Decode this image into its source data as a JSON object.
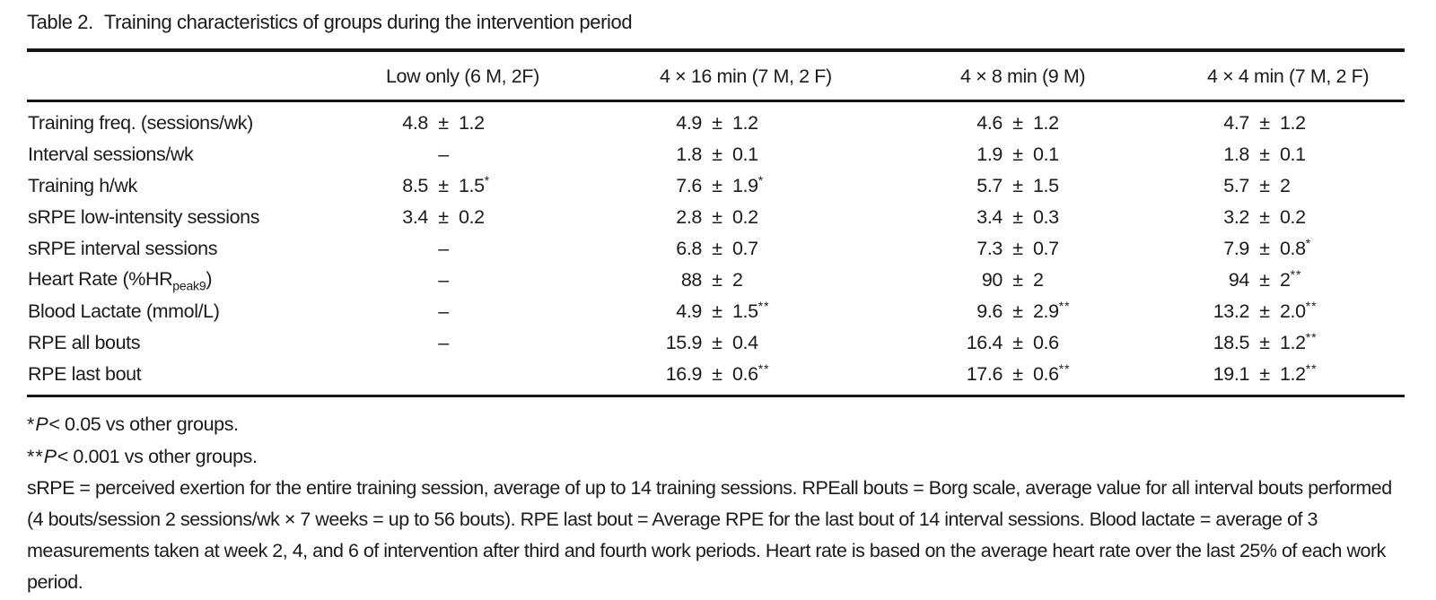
{
  "title": {
    "label": "Table 2.",
    "text": "Training characteristics of groups during the intervention period"
  },
  "symbols": {
    "pm": "±",
    "dash": "–"
  },
  "table": {
    "columns": [
      "",
      "Low only (6 M, 2F)",
      "4 × 16 min (7 M, 2 F)",
      "4 × 8 min (9 M)",
      "4 × 4 min (7 M, 2 F)"
    ],
    "rows": [
      {
        "label": "Training freq. (sessions/wk)",
        "cells": [
          {
            "mean": "4.8",
            "sd": "1.2",
            "sig": ""
          },
          {
            "mean": "4.9",
            "sd": "1.2",
            "sig": ""
          },
          {
            "mean": "4.6",
            "sd": "1.2",
            "sig": ""
          },
          {
            "mean": "4.7",
            "sd": "1.2",
            "sig": ""
          }
        ]
      },
      {
        "label": "Interval sessions/wk",
        "cells": [
          {
            "dash": true
          },
          {
            "mean": "1.8",
            "sd": "0.1",
            "sig": ""
          },
          {
            "mean": "1.9",
            "sd": "0.1",
            "sig": ""
          },
          {
            "mean": "1.8",
            "sd": "0.1",
            "sig": ""
          }
        ]
      },
      {
        "label": "Training h/wk",
        "cells": [
          {
            "mean": "8.5",
            "sd": "1.5",
            "sig": "*"
          },
          {
            "mean": "7.6",
            "sd": "1.9",
            "sig": "*"
          },
          {
            "mean": "5.7",
            "sd": "1.5",
            "sig": ""
          },
          {
            "mean": "5.7",
            "sd": "2",
            "sig": ""
          }
        ]
      },
      {
        "label": "sRPE low-intensity sessions",
        "cells": [
          {
            "mean": "3.4",
            "sd": "0.2",
            "sig": ""
          },
          {
            "mean": "2.8",
            "sd": "0.2",
            "sig": ""
          },
          {
            "mean": "3.4",
            "sd": "0.3",
            "sig": ""
          },
          {
            "mean": "3.2",
            "sd": "0.2",
            "sig": ""
          }
        ]
      },
      {
        "label": "sRPE interval sessions",
        "cells": [
          {
            "dash": true
          },
          {
            "mean": "6.8",
            "sd": "0.7",
            "sig": ""
          },
          {
            "mean": "7.3",
            "sd": "0.7",
            "sig": ""
          },
          {
            "mean": "7.9",
            "sd": "0.8",
            "sig": "*"
          }
        ]
      },
      {
        "label": "Heart Rate (%HR",
        "label_sub": "peak9",
        "label_end": ")",
        "cells": [
          {
            "dash": true
          },
          {
            "mean": "88",
            "sd": "2",
            "sig": ""
          },
          {
            "mean": "90",
            "sd": "2",
            "sig": ""
          },
          {
            "mean": "94",
            "sd": "2",
            "sig": "**"
          }
        ]
      },
      {
        "label": "Blood Lactate (mmol/L)",
        "cells": [
          {
            "dash": true
          },
          {
            "mean": "4.9",
            "sd": "1.5",
            "sig": "**"
          },
          {
            "mean": "9.6",
            "sd": "2.9",
            "sig": "**"
          },
          {
            "mean": "13.2",
            "sd": "2.0",
            "sig": "**"
          }
        ]
      },
      {
        "label": "RPE all bouts",
        "cells": [
          {
            "dash": true
          },
          {
            "mean": "15.9",
            "sd": "0.4",
            "sig": ""
          },
          {
            "mean": "16.4",
            "sd": "0.6",
            "sig": ""
          },
          {
            "mean": "18.5",
            "sd": "1.2",
            "sig": "**"
          }
        ]
      },
      {
        "label": "RPE last bout",
        "cells": [
          null,
          {
            "mean": "16.9",
            "sd": "0.6",
            "sig": "**"
          },
          {
            "mean": "17.6",
            "sd": "0.6",
            "sig": "**"
          },
          {
            "mean": "19.1",
            "sd": "1.2",
            "sig": "**"
          }
        ]
      }
    ]
  },
  "footnotes": [
    {
      "marker": "*",
      "italic": "P",
      "text": "< 0.05 vs other groups."
    },
    {
      "marker": "**",
      "italic": "P",
      "text": "< 0.001 vs other groups."
    },
    {
      "paragraph": true,
      "text": "sRPE = perceived exertion for the entire training session, average of up to 14 training sessions. RPEall bouts = Borg scale, average value for all interval bouts performed (4 bouts/session 2 sessions/wk × 7 weeks = up to 56 bouts). RPE last bout = Average RPE for the last bout of 14 interval sessions. Blood lactate = average of 3 measurements taken at week 2, 4, and 6 of intervention after third and fourth work periods. Heart rate is based on the average heart rate over the last 25% of each work period."
    }
  ]
}
